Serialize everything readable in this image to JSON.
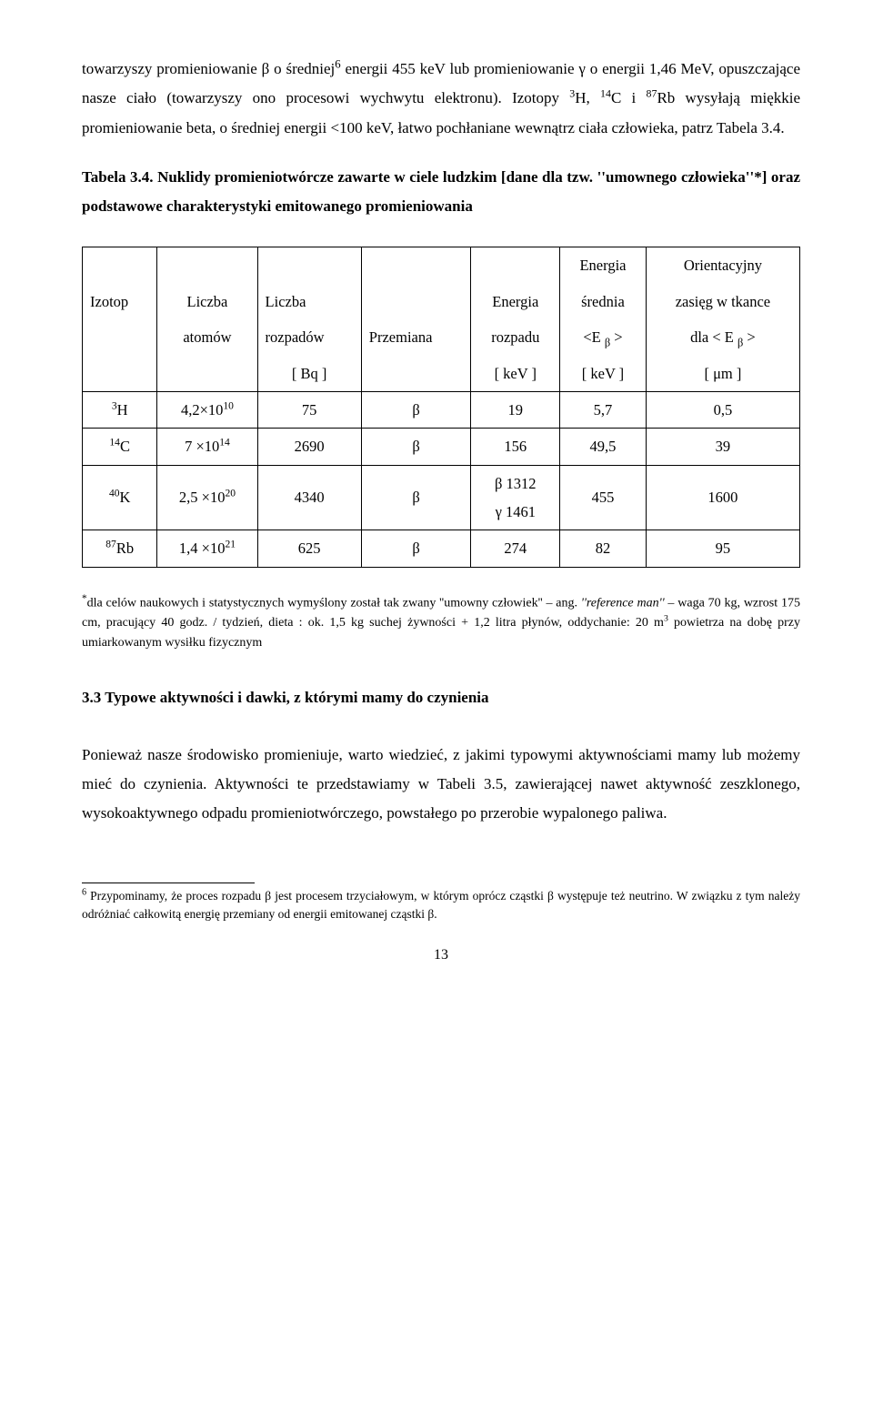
{
  "para1_html": "towarzyszy promieniowanie β  o średniej<span class='sup-mark'>6</span> energii 455 keV lub promieniowanie γ o energii 1,46 MeV, opuszczające nasze ciało (towarzyszy ono procesowi wychwytu elektronu). Izotopy <sup>3</sup>H, <sup>14</sup>C i <sup>87</sup>Rb wysyłają miękkie promieniowanie beta, o średniej energii &lt;100 keV, łatwo pochłaniane wewnątrz ciała człowieka, patrz Tabela 3.4.",
  "table_title_html": "<span class='bold'>Tabela 3.4. Nuklidy promieniotwórcze zawarte w ciele ludzkim [dane dla tzw. ''umownego człowieka''*] oraz podstawowe charakterystyki emitowanego promieniowania</span>",
  "table": {
    "header": {
      "izotop": "Izotop",
      "liczba_atomow_l1": "Liczba",
      "liczba_atomow_l2": "atomów",
      "liczba_rozpadow_l1": "Liczba",
      "liczba_rozpadow_l2": "rozpadów",
      "liczba_rozpadow_l3": "[ Bq ]",
      "przemiana": "Przemiana",
      "energia_rozpadu_l1": "Energia",
      "energia_rozpadu_l2": "rozpadu",
      "energia_rozpadu_l3": "[ keV ]",
      "energia_srednia_l0": "Energia",
      "energia_srednia_l1": "średnia",
      "energia_srednia_l2_html": "&lt;E <sub>β</sub> &gt;",
      "energia_srednia_l3": "[ keV ]",
      "zasieg_l0": "Orientacyjny",
      "zasieg_l1": "zasięg w tkance",
      "zasieg_l2_html": "dla &lt; E <sub>β</sub> &gt;",
      "zasieg_l3": "[ μm ]"
    },
    "rows": [
      {
        "iso_html": "<sup>3</sup>H",
        "atoms_html": "4,2×10<sup>10</sup>",
        "bq": "75",
        "decay": "β",
        "e_decay_html": "19",
        "e_avg": "5,7",
        "range": "0,5"
      },
      {
        "iso_html": "<sup>14</sup>C",
        "atoms_html": "7 ×10<sup>14</sup>",
        "bq": "2690",
        "decay": "β",
        "e_decay_html": "156",
        "e_avg": "49,5",
        "range": "39"
      },
      {
        "iso_html": "<sup>40</sup>K",
        "atoms_html": "2,5 ×10<sup>20</sup>",
        "bq": "4340",
        "decay": "β",
        "e_decay_html": "β  1312<br>γ  1461",
        "e_avg": "455",
        "range": "1600"
      },
      {
        "iso_html": "<sup>87</sup>Rb",
        "atoms_html": "1,4 ×10<sup>21</sup>",
        "bq": "625",
        "decay": "β",
        "e_decay_html": "274",
        "e_avg": "82",
        "range": "95"
      }
    ]
  },
  "footnote_html": "<span class='star'>*</span>dla celów naukowych i statystycznych wymyślony został  tak zwany  ''umowny człowiek'' – ang. <span class='italic'>''reference man''</span> – waga  70 kg, wzrost 175 cm,  pracujący  40 godz. / tydzień, dieta : ok.  1,5 kg  suchej żywności + 1,2 litra płynów,  oddychanie:  20 m<sup>3</sup>  powietrza na dobę przy umiarkowanym wysiłku fizycznym",
  "section_heading": "3.3   Typowe aktywności i dawki, z którymi mamy do czynienia",
  "para2": "Ponieważ nasze środowisko promieniuje, warto wiedzieć, z jakimi typowymi aktywnościami mamy lub możemy mieć do czynienia. Aktywności te przedstawiamy w Tabeli 3.5, zawierającej nawet aktywność zeszklonego, wysokoaktywnego odpadu promieniotwórczego, powstałego po przerobie wypalonego paliwa.",
  "endnote_html": "<span class='sup-mark'>6</span> Przypominamy, że proces rozpadu β jest procesem trzyciałowym, w którym oprócz cząstki β występuje też neutrino. W związku z tym należy odróżniać całkowitą energię przemiany od energii emitowanej cząstki β.",
  "page_number": "13"
}
